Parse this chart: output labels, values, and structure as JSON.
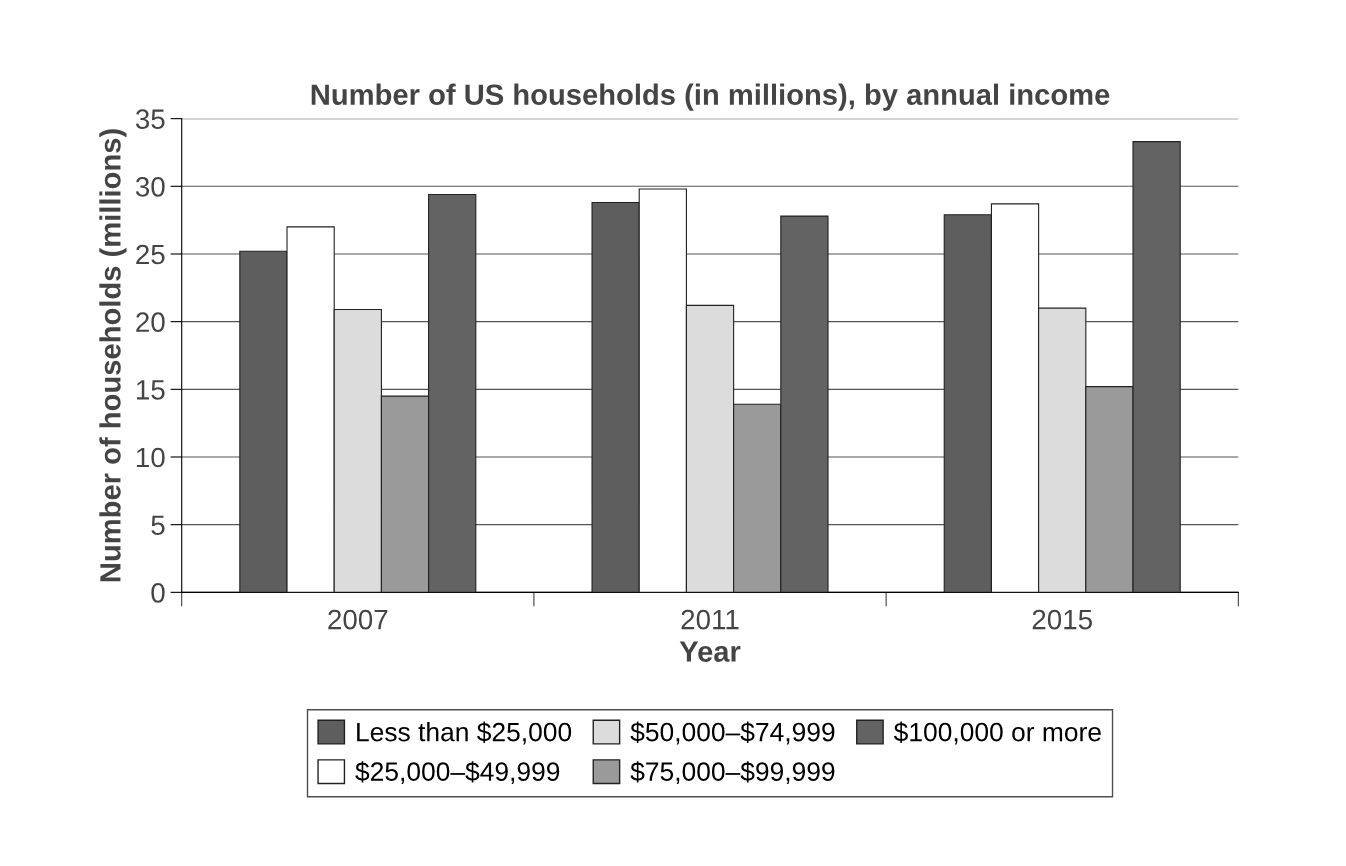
{
  "chart_data": {
    "type": "bar",
    "title": "Number of US households (in millions), by annual income",
    "xlabel": "Year",
    "ylabel": "Number of households (millions)",
    "categories": [
      "2007",
      "2011",
      "2015"
    ],
    "series": [
      {
        "name": "Less than $25,000",
        "color": "#5e5e5e",
        "values": [
          25.2,
          28.8,
          27.9
        ]
      },
      {
        "name": "$25,000–$49,999",
        "color": "#ffffff",
        "values": [
          27.0,
          29.8,
          28.7
        ]
      },
      {
        "name": "$50,000–$74,999",
        "color": "#dcdcdc",
        "values": [
          20.9,
          21.2,
          21.0
        ]
      },
      {
        "name": "$75,000–$99,999",
        "color": "#9a9a9a",
        "values": [
          14.5,
          13.9,
          15.2
        ]
      },
      {
        "name": "$100,000 or more",
        "color": "#636363",
        "values": [
          29.4,
          27.8,
          33.3
        ]
      }
    ],
    "ylim": [
      0,
      35
    ],
    "yticks": [
      0,
      5,
      10,
      15,
      20,
      25,
      30,
      35
    ],
    "grid": "y",
    "legend": "bottom"
  }
}
